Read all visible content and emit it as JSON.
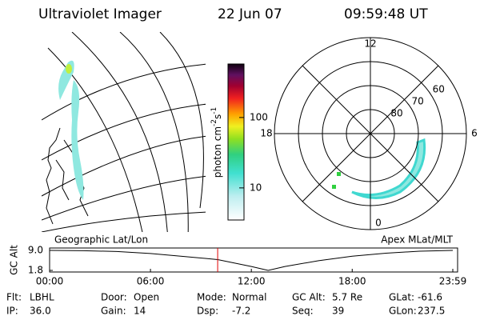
{
  "header": {
    "title": "Ultraviolet Imager",
    "date": "22 Jun 07",
    "time": "09:59:48 UT"
  },
  "geo_panel": {
    "label": "Geographic Lat/Lon"
  },
  "colorbar": {
    "label": "photon cm",
    "exp1": "-2",
    "unit2": "s",
    "exp2": "-1",
    "log": true,
    "lim": [
      3.5,
      575
    ],
    "ticks": [
      10,
      100
    ]
  },
  "polar_panel": {
    "label": "Apex MLat/MLT",
    "rlim": [
      90,
      50
    ],
    "rticks": [
      60,
      70,
      80
    ],
    "hour_ticks": [
      0,
      6,
      12,
      18
    ]
  },
  "altitude_plot": {
    "ylabel": "GC Alt",
    "ylim": [
      1.8,
      9.0
    ],
    "yticks": [
      1.8,
      {
        "value": 9,
        "label": "9.0"
      }
    ],
    "xlim": [
      0,
      23.983
    ],
    "xticks": [
      {
        "value": 0,
        "label": "00:00"
      },
      {
        "value": 6,
        "label": "06:00"
      },
      {
        "value": 12,
        "label": "12:00"
      },
      {
        "value": 18,
        "label": "18:00"
      },
      {
        "value": 23.983,
        "label": "23:59"
      }
    ],
    "x": [
      0,
      2,
      4,
      6,
      8,
      10,
      12,
      13,
      14,
      16,
      18,
      20,
      22,
      23.983
    ],
    "values": [
      9.0,
      8.9,
      8.6,
      7.9,
      6.8,
      5.7,
      3.2,
      1.8,
      3.2,
      5.3,
      6.9,
      8.0,
      8.7,
      9.0
    ],
    "marker": 9.997,
    "marker_color": "#e00000"
  },
  "footer": [
    [
      [
        "Flt:",
        "LBHL"
      ],
      [
        "Door:",
        "Open"
      ],
      [
        "Mode:",
        "Normal"
      ],
      [
        "GC Alt:",
        "5.7 Re"
      ],
      [
        "GLat:",
        "-61.6"
      ]
    ],
    [
      [
        "IP:",
        "36.0"
      ],
      [
        "Gain:",
        "14"
      ],
      [
        "Dsp:",
        "-7.2"
      ],
      [
        "Seq:",
        "39"
      ],
      [
        "GLon:",
        "237.5"
      ]
    ]
  ]
}
